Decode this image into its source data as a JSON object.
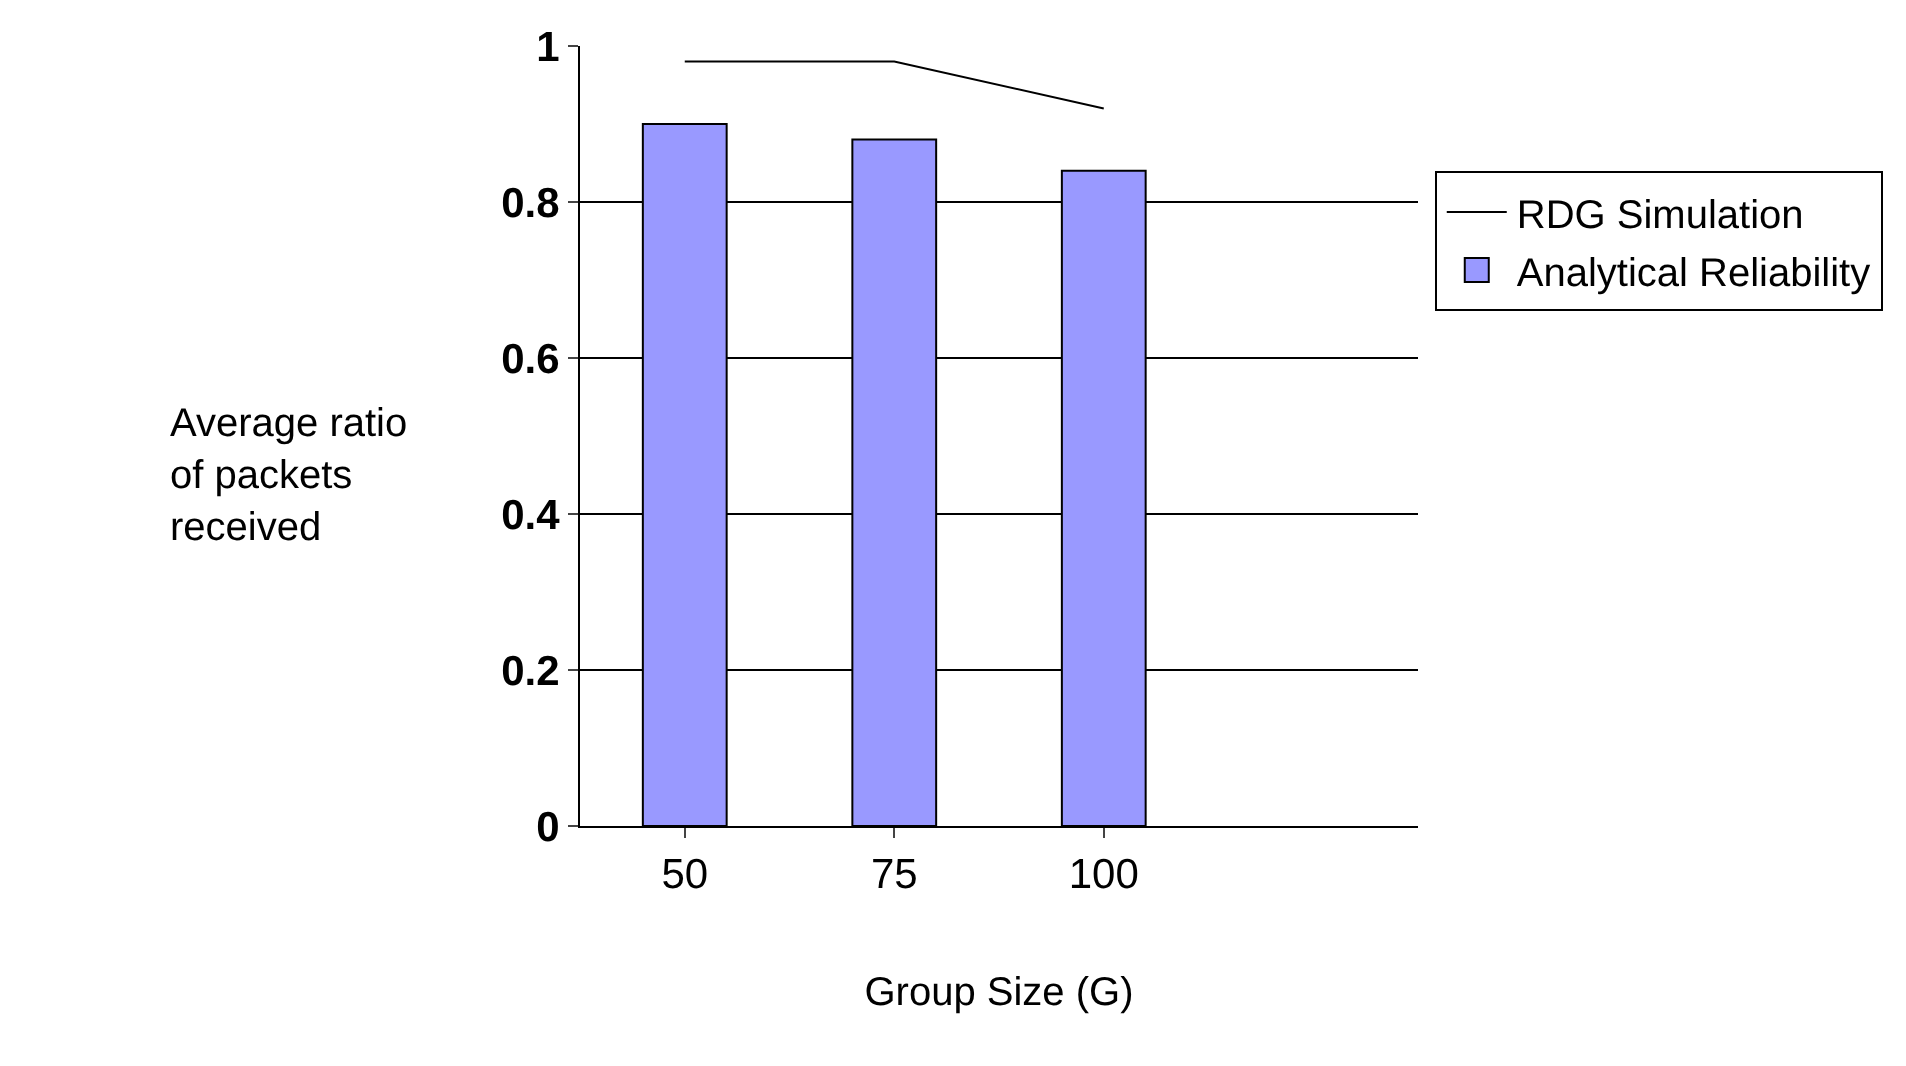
{
  "chart_data": {
    "type": "bar",
    "xlabel": "Group Size (G)",
    "ylabel": "Average ratio of packets received",
    "categories": [
      "50",
      "75",
      "100",
      null
    ],
    "series": [
      {
        "name": "RDG Simulation",
        "type": "line",
        "color": "#000000",
        "values": [
          0.98,
          0.98,
          0.92,
          null
        ]
      },
      {
        "name": "Analytical Reliability",
        "color": "#9999ff",
        "values": [
          0.9,
          0.88,
          0.84,
          null
        ]
      }
    ],
    "ylim": [
      0,
      1
    ],
    "yticks": [
      0,
      0.2,
      0.4,
      0.6,
      0.8,
      1
    ],
    "grid": "y",
    "legend": "right",
    "marker": "none"
  }
}
